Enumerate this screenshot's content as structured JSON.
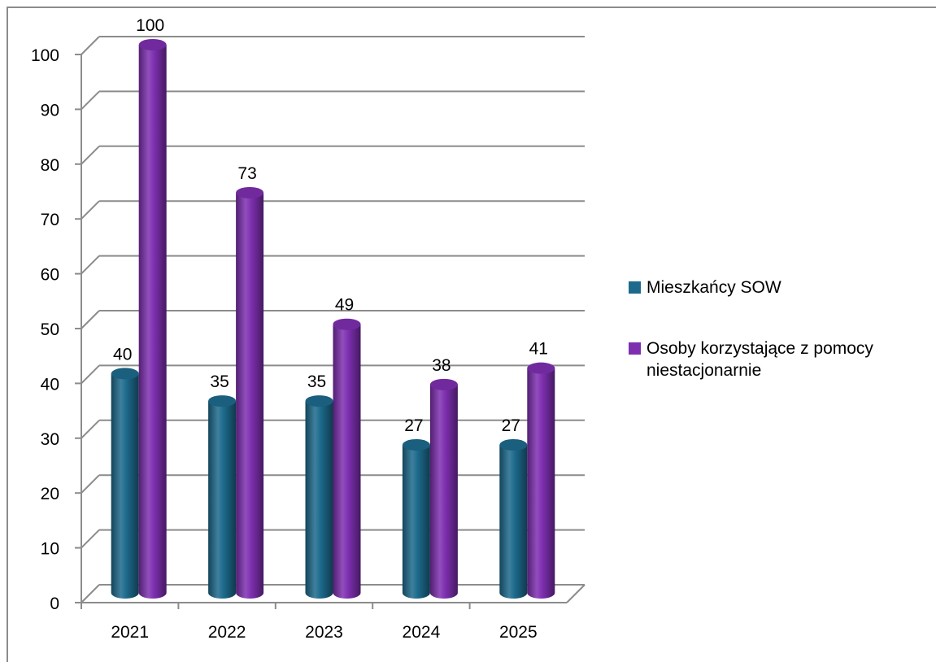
{
  "chart_data": {
    "type": "bar",
    "variant": "3d-cylinder-clustered",
    "categories": [
      "2021",
      "2022",
      "2023",
      "2024",
      "2025"
    ],
    "series": [
      {
        "name": "Mieszkańcy SOW",
        "values": [
          40,
          35,
          35,
          27,
          27
        ],
        "color": "#1d6a8c"
      },
      {
        "name": "Osoby korzystające z pomocy niestacjonarnie",
        "values": [
          100,
          73,
          49,
          38,
          41
        ],
        "color": "#7e2fb0"
      }
    ],
    "ylim": [
      0,
      100
    ],
    "yticks": [
      0,
      10,
      20,
      30,
      40,
      50,
      60,
      70,
      80,
      90,
      100
    ],
    "grid": true,
    "legend_position": "right",
    "title": "",
    "xlabel": "",
    "ylabel": ""
  },
  "colors": {
    "gridline": "#8c8c8c",
    "frame": "#8c8c8c"
  }
}
